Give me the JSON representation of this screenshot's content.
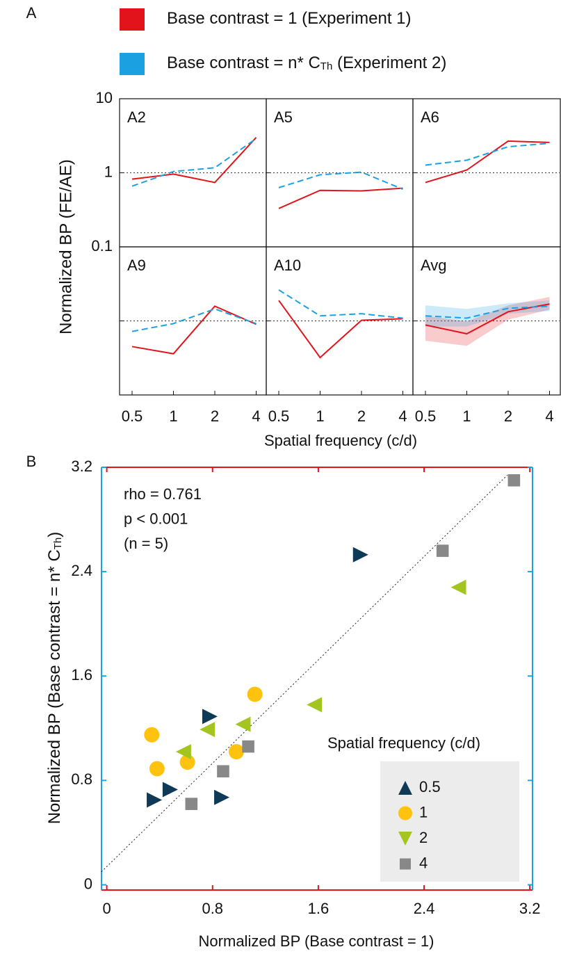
{
  "chart_data": [
    {
      "type": "line",
      "panel_label": "A",
      "ylabel": "Normalized BP (FE/AE)",
      "xlabel": "Spatial frequency (c/d)",
      "categories": [
        "0.5",
        "1",
        "2",
        "4"
      ],
      "log_y": true,
      "ylim": [
        0.1,
        10
      ],
      "yticks": [
        0.1,
        1,
        10
      ],
      "refline": 1,
      "series": [
        {
          "name": [
            "Base contrast = 1 (Experiment 1)"
          ],
          "color": "#e3131b",
          "line_style": "solid"
        },
        {
          "name": [
            "Base contrast = n* C",
            "Th",
            " (Experiment 2)"
          ],
          "color": "#1ba1e2",
          "line_style": "dashed"
        }
      ],
      "panels": [
        {
          "title": "A2",
          "series": [
            {
              "values": [
                0.82,
                0.96,
                0.74,
                3.0
              ]
            },
            {
              "values": [
                0.66,
                1.04,
                1.17,
                2.9
              ]
            }
          ]
        },
        {
          "title": "A5",
          "series": [
            {
              "values": [
                0.33,
                0.58,
                0.57,
                0.62
              ]
            },
            {
              "values": [
                0.63,
                0.94,
                1.02,
                0.6
              ]
            }
          ]
        },
        {
          "title": "A6",
          "series": [
            {
              "values": [
                0.74,
                1.09,
                2.68,
                2.57
              ]
            },
            {
              "values": [
                1.27,
                1.48,
                2.25,
                2.5
              ]
            }
          ]
        },
        {
          "title": "A9",
          "series": [
            {
              "values": [
                0.45,
                0.36,
                1.58,
                0.9
              ]
            },
            {
              "values": [
                0.72,
                0.92,
                1.45,
                0.92
              ]
            }
          ]
        },
        {
          "title": "A10",
          "series": [
            {
              "values": [
                1.89,
                0.32,
                1.02,
                1.07
              ]
            },
            {
              "values": [
                2.62,
                1.17,
                1.25,
                1.09
              ]
            }
          ]
        },
        {
          "title": "Avg",
          "series": [
            {
              "values": [
                0.88,
                0.67,
                1.33,
                1.69
              ],
              "lower": [
                0.54,
                0.46,
                1.04,
                1.42
              ],
              "upper": [
                1.17,
                0.98,
                1.62,
                2.11
              ]
            },
            {
              "values": [
                1.17,
                1.09,
                1.48,
                1.58
              ],
              "lower": [
                0.84,
                0.84,
                1.25,
                1.36
              ],
              "upper": [
                1.62,
                1.45,
                1.73,
                1.89
              ]
            }
          ]
        }
      ]
    },
    {
      "type": "scatter",
      "panel_label": "B",
      "xlabel": "Normalized BP (Base contrast = 1)",
      "ylabel": [
        "Normalized BP (Base contrast = n* C",
        "Th",
        ")"
      ],
      "xlim": [
        -0.04,
        3.22
      ],
      "ylim": [
        -0.04,
        3.2
      ],
      "xticks": [
        0,
        0.8,
        1.6,
        2.4,
        3.2
      ],
      "yticks": [
        0,
        0.8,
        1.6,
        2.4,
        3.2
      ],
      "xaxis_color": "#e3131b",
      "yaxis_color": "#1ba1e2",
      "annotations": [
        "rho = 0.761",
        "p < 0.001",
        "(n = 5)"
      ],
      "fit": {
        "x": [
          -0.04,
          3.03
        ],
        "y": [
          0.1,
          3.14
        ]
      },
      "legend_title": "Spatial frequency (c/d)",
      "series": [
        {
          "name": "0.5",
          "color": "#0f3a57",
          "marker": "triangle-right",
          "legend_marker": "triangle-up",
          "x": [
            0.36,
            0.48,
            0.78,
            0.87,
            1.92
          ],
          "y": [
            0.65,
            0.73,
            1.29,
            0.67,
            2.53
          ]
        },
        {
          "name": "1",
          "color": "#ffc20e",
          "marker": "circle",
          "legend_marker": "circle",
          "x": [
            0.34,
            0.38,
            0.61,
            0.98,
            1.12
          ],
          "y": [
            1.15,
            0.89,
            0.94,
            1.02,
            1.46
          ]
        },
        {
          "name": "2",
          "color": "#a4c520",
          "marker": "triangle-left",
          "legend_marker": "triangle-down",
          "x": [
            0.58,
            0.76,
            1.03,
            1.57,
            2.66
          ],
          "y": [
            1.02,
            1.19,
            1.23,
            1.38,
            2.28
          ]
        },
        {
          "name": "4",
          "color": "#888888",
          "marker": "square",
          "legend_marker": "square",
          "x": [
            0.64,
            0.88,
            1.07,
            2.54,
            3.08
          ],
          "y": [
            0.62,
            0.87,
            1.06,
            2.56,
            3.1
          ]
        }
      ]
    }
  ]
}
